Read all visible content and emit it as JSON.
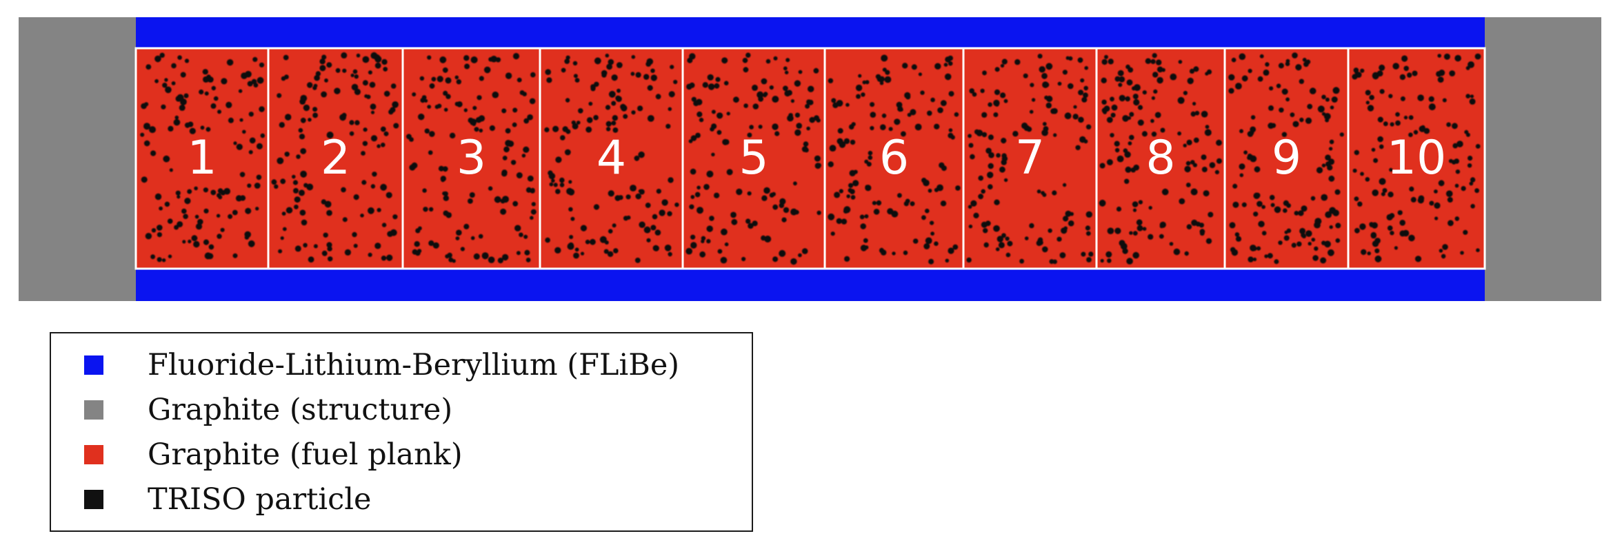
{
  "diagram": {
    "colors": {
      "flibe": "#0a14f0",
      "graphite_structure": "#848484",
      "fuel_plank": "#e0301e",
      "triso": "#111111",
      "divider": "#ffffff"
    },
    "compartments": [
      {
        "label": "1"
      },
      {
        "label": "2"
      },
      {
        "label": "3"
      },
      {
        "label": "4"
      },
      {
        "label": "5"
      },
      {
        "label": "6"
      },
      {
        "label": "7"
      },
      {
        "label": "8"
      },
      {
        "label": "9"
      },
      {
        "label": "10"
      }
    ]
  },
  "legend": {
    "items": [
      {
        "label": "Fluoride-Lithium-Beryllium (FLiBe)",
        "color": "#0a14f0"
      },
      {
        "label": "Graphite (structure)",
        "color": "#848484"
      },
      {
        "label": "Graphite (fuel plank)",
        "color": "#e0301e"
      },
      {
        "label": "TRISO particle",
        "color": "#111111"
      }
    ]
  }
}
